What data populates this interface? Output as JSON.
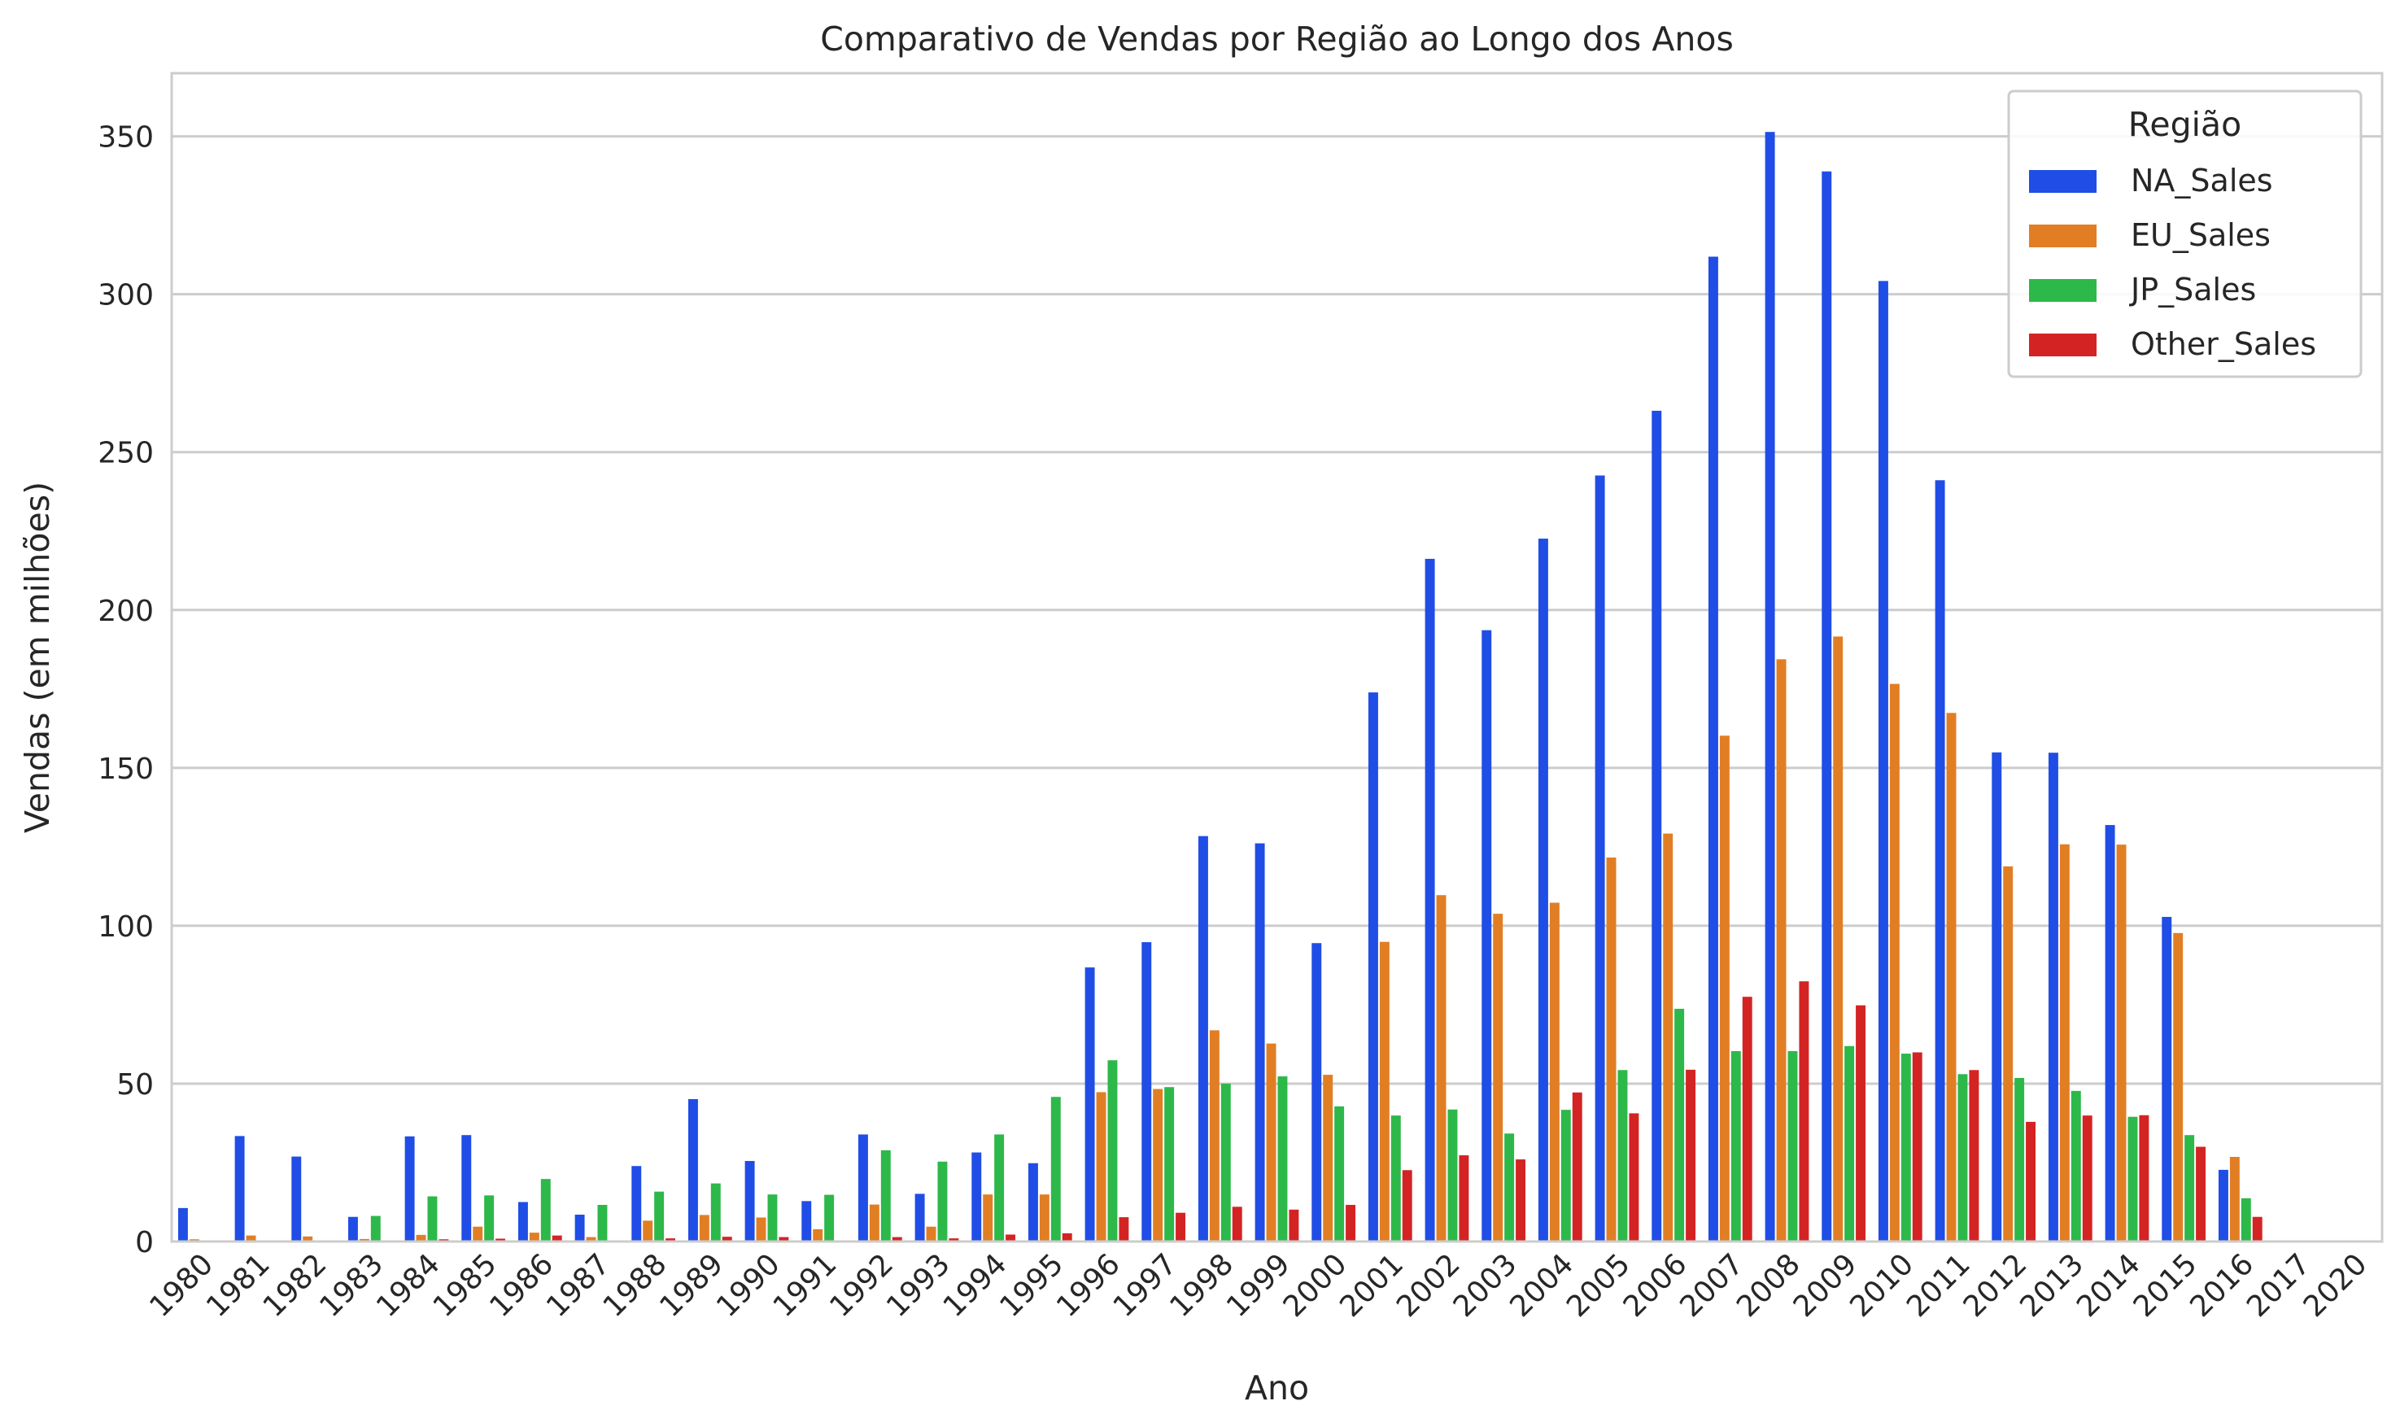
{
  "chart_data": {
    "type": "bar",
    "title": "Comparativo de Vendas por Região ao Longo dos Anos",
    "xlabel": "Ano",
    "ylabel": "Vendas (em milhões)",
    "ylim": [
      0,
      370
    ],
    "yticks": [
      0,
      50,
      100,
      150,
      200,
      250,
      300,
      350
    ],
    "grid": "horizontal",
    "legend": {
      "title": "Região",
      "placement": "top-right"
    },
    "categories": [
      "1980",
      "1981",
      "1982",
      "1983",
      "1984",
      "1985",
      "1986",
      "1987",
      "1988",
      "1989",
      "1990",
      "1991",
      "1992",
      "1993",
      "1994",
      "1995",
      "1996",
      "1997",
      "1998",
      "1999",
      "2000",
      "2001",
      "2002",
      "2003",
      "2004",
      "2005",
      "2006",
      "2007",
      "2008",
      "2009",
      "2010",
      "2011",
      "2012",
      "2013",
      "2014",
      "2015",
      "2016",
      "2017",
      "2020"
    ],
    "series": [
      {
        "name": "NA_Sales",
        "color": "#1f4de6",
        "values": [
          10.6,
          33.4,
          26.9,
          7.8,
          33.3,
          33.7,
          12.5,
          8.5,
          23.9,
          45.1,
          25.5,
          12.8,
          33.9,
          15.1,
          28.2,
          24.8,
          86.8,
          94.8,
          128.4,
          126.1,
          94.5,
          173.9,
          216.2,
          193.6,
          222.6,
          242.6,
          263.1,
          311.9,
          351.4,
          338.9,
          304.2,
          241.1,
          154.9,
          154.8,
          131.9,
          102.8,
          22.7,
          0.0,
          0.3
        ]
      },
      {
        "name": "EU_Sales",
        "color": "#e17e24",
        "values": [
          0.7,
          1.9,
          1.6,
          0.8,
          2.1,
          4.7,
          2.8,
          1.4,
          6.6,
          8.4,
          7.6,
          3.9,
          11.7,
          4.7,
          14.9,
          14.9,
          47.3,
          48.3,
          66.9,
          62.7,
          52.8,
          94.9,
          109.7,
          103.8,
          107.3,
          121.6,
          129.2,
          160.2,
          184.4,
          191.6,
          176.6,
          167.4,
          118.8,
          125.8,
          125.7,
          97.7,
          26.8,
          0.05,
          0.0
        ]
      },
      {
        "name": "JP_Sales",
        "color": "#2db84a",
        "values": [
          0.0,
          0.0,
          0.0,
          8.1,
          14.3,
          14.6,
          19.8,
          11.6,
          15.8,
          18.4,
          14.9,
          14.8,
          28.9,
          25.3,
          33.9,
          45.8,
          57.4,
          48.9,
          50.0,
          52.3,
          42.8,
          39.9,
          41.8,
          34.2,
          41.7,
          54.3,
          73.7,
          60.3,
          60.3,
          61.9,
          59.5,
          53.0,
          51.8,
          47.7,
          39.5,
          33.7,
          13.7,
          0.05,
          0.0
        ]
      },
      {
        "name": "Other_Sales",
        "color": "#d42323",
        "values": [
          0.1,
          0.3,
          0.3,
          0.1,
          0.7,
          0.9,
          1.9,
          0.2,
          1.0,
          1.5,
          1.4,
          0.3,
          1.4,
          1.0,
          2.2,
          2.6,
          7.7,
          9.1,
          11.0,
          10.1,
          11.6,
          22.6,
          27.3,
          26.0,
          47.2,
          40.6,
          54.4,
          77.5,
          82.4,
          74.8,
          59.9,
          54.3,
          37.9,
          39.9,
          40.0,
          30.0,
          7.8,
          0.0,
          0.0
        ]
      }
    ]
  }
}
